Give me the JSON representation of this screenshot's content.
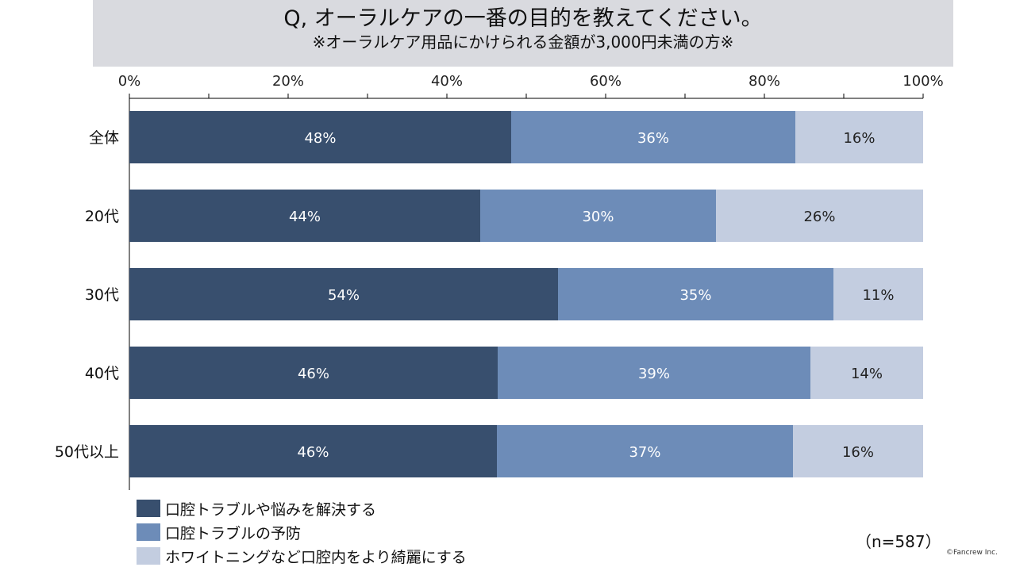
{
  "chart_data": {
    "type": "bar",
    "orientation": "horizontal",
    "stacked": true,
    "title": "Q, オーラルケアの一番の目的を教えてください。",
    "subtitle": "※オーラルケア用品にかけられる金額が3,000円未満の方※",
    "categories": [
      "全体",
      "20代",
      "30代",
      "40代",
      "50代以上"
    ],
    "series": [
      {
        "name": "口腔トラブルや悩みを解決する",
        "color": "#384f6e",
        "values": [
          48.1,
          44.2,
          54.0,
          46.4,
          46.3
        ],
        "labels": [
          "48%",
          "44%",
          "54%",
          "46%",
          "46%"
        ]
      },
      {
        "name": "口腔トラブルの予防",
        "color": "#6d8cb8",
        "values": [
          35.8,
          29.7,
          34.7,
          39.4,
          37.3
        ],
        "labels": [
          "36%",
          "30%",
          "35%",
          "39%",
          "37%"
        ]
      },
      {
        "name": "ホワイトニングなど口腔内をより綺麗にする",
        "color": "#c3cde0",
        "values": [
          16.1,
          26.1,
          11.3,
          14.2,
          16.4
        ],
        "labels": [
          "16%",
          "26%",
          "11%",
          "14%",
          "16%"
        ]
      }
    ],
    "xlim": [
      0,
      100
    ],
    "xticks": [
      "0%",
      "20%",
      "40%",
      "60%",
      "80%",
      "100%"
    ],
    "legend_position": "bottom-left",
    "grid": false
  },
  "sample_note": "（n=587）",
  "copyright": "©Fancrew Inc."
}
